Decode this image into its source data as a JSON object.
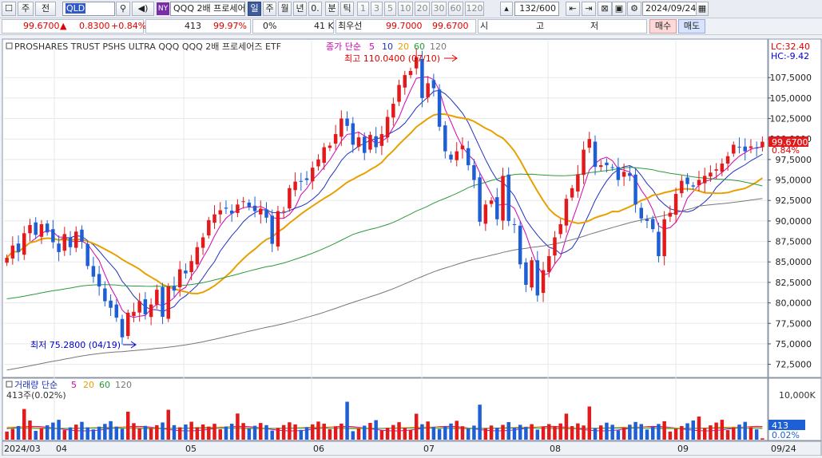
{
  "toolbar": {
    "market_labels": [
      "주",
      "전"
    ],
    "ticker": "QLD",
    "stock_name": "QQQ 2배 프로세어",
    "exchange_badge": "NY",
    "period_buttons": [
      "일",
      "주",
      "월",
      "년",
      "0.",
      "분",
      "틱"
    ],
    "period_selected": "일",
    "minute_buttons": [
      "1",
      "3",
      "5",
      "10",
      "20",
      "30",
      "60",
      "120"
    ],
    "count": "132/600",
    "date": "2024/09/24"
  },
  "infobar": {
    "price": "99.6700",
    "change": "0.8300",
    "change_pct": "+0.84%",
    "volume": "413",
    "volume_ratio": "99.97%",
    "zero": "0%",
    "amount": "41 K",
    "best_label": "최우선",
    "best_ask": "99.7000",
    "best_bid": "99.6700",
    "ohlc_labels": [
      "시",
      "고",
      "저"
    ],
    "buy_label": "매수",
    "sell_label": "매도"
  },
  "chart": {
    "title": "PROSHARES TRUST PSHS ULTRA QQQ  QQQ 2배 프로세어즈 ETF",
    "ma_label_prefix": "종가 단순",
    "ma_periods": [
      "5",
      "10",
      "20",
      "60",
      "120"
    ],
    "lc_label": "LC:32.40",
    "hc_label": "HC:-9.42",
    "current_price_label": "99.6700",
    "current_pct_label": "0.84%",
    "high_annotation": "최고 110.0400 (07/10)",
    "low_annotation": "최저 75.2800 (04/19)",
    "volume_title": "거래량 단순",
    "volume_ma_periods": [
      "5",
      "20",
      "60",
      "120"
    ],
    "volume_info": "413주(0.02%)",
    "volume_axis_label": "10,000K",
    "volume_current_label": "413",
    "volume_current_pct": "0.02%",
    "colors": {
      "up": "#e31a1c",
      "down": "#1f5fd6",
      "ma5": "#d400b4",
      "ma10": "#2030c0",
      "ma20": "#e8a000",
      "ma60": "#2a9a3a",
      "ma120": "#777777"
    }
  },
  "chart_data": {
    "type": "candlestick",
    "y_ticks": [
      "107,5000",
      "105,0000",
      "102,5000",
      "100,0000",
      "97,5000",
      "95,0000",
      "92,5000",
      "90,0000",
      "87,5000",
      "85,0000",
      "82,5000",
      "80,0000",
      "77,5000",
      "75,0000",
      "72,5000"
    ],
    "ylim": [
      71.0,
      112.0
    ],
    "x_labels": [
      "2024/03",
      "04",
      "05",
      "06",
      "07",
      "08",
      "09",
      "09/24"
    ],
    "high": {
      "value": 110.04,
      "date": "07/10"
    },
    "low": {
      "value": 75.28,
      "date": "04/19"
    },
    "close_series": [
      85.5,
      87.0,
      86.2,
      88.5,
      89.5,
      88.3,
      89.6,
      88.6,
      87.4,
      86.2,
      88.4,
      86.8,
      88.7,
      87.5,
      84.5,
      83.2,
      82.0,
      80.2,
      79.4,
      78.2,
      75.8,
      78.8,
      78.9,
      80.2,
      78.6,
      79.8,
      81.6,
      78.3,
      82.0,
      81.5,
      84.1,
      83.6,
      85.1,
      86.8,
      88.0,
      90.1,
      90.8,
      91.3,
      91.5,
      90.9,
      92.0,
      92.4,
      91.7,
      91.2,
      91.5,
      90.4,
      87.2,
      91.2,
      91.2,
      94.0,
      94.8,
      94.8,
      95.0,
      96.5,
      97.5,
      99.0,
      99.2,
      100.6,
      102.5,
      101.6,
      99.3,
      100.2,
      98.3,
      100.5,
      99.0,
      100.6,
      102.7,
      104.3,
      106.6,
      107.8,
      108.3,
      110.0,
      105.0,
      106.8,
      106.2,
      101.5,
      98.5,
      97.5,
      98.5,
      99.2,
      96.8,
      95.0,
      89.9,
      92.0,
      92.5,
      90.2,
      95.5,
      90.0,
      89.5,
      84.7,
      82.2,
      85.2,
      80.9,
      84.0,
      85.7,
      88.0,
      89.6,
      92.7,
      94.0,
      95.7,
      98.7,
      100.0,
      96.6,
      96.8,
      96.8,
      96.5,
      95.0,
      96.0,
      95.5,
      92.0,
      90.3,
      90.0,
      89.0,
      85.7,
      90.2,
      91.0,
      93.3,
      94.9,
      94.5,
      94.2,
      95.0,
      95.5,
      95.9,
      96.3,
      97.0,
      97.9,
      99.3,
      99.0,
      98.5,
      99.1,
      98.84,
      99.67
    ],
    "volume_axis": {
      "label": "10,000K",
      "max_k": 16000
    },
    "volume_current": 413
  }
}
